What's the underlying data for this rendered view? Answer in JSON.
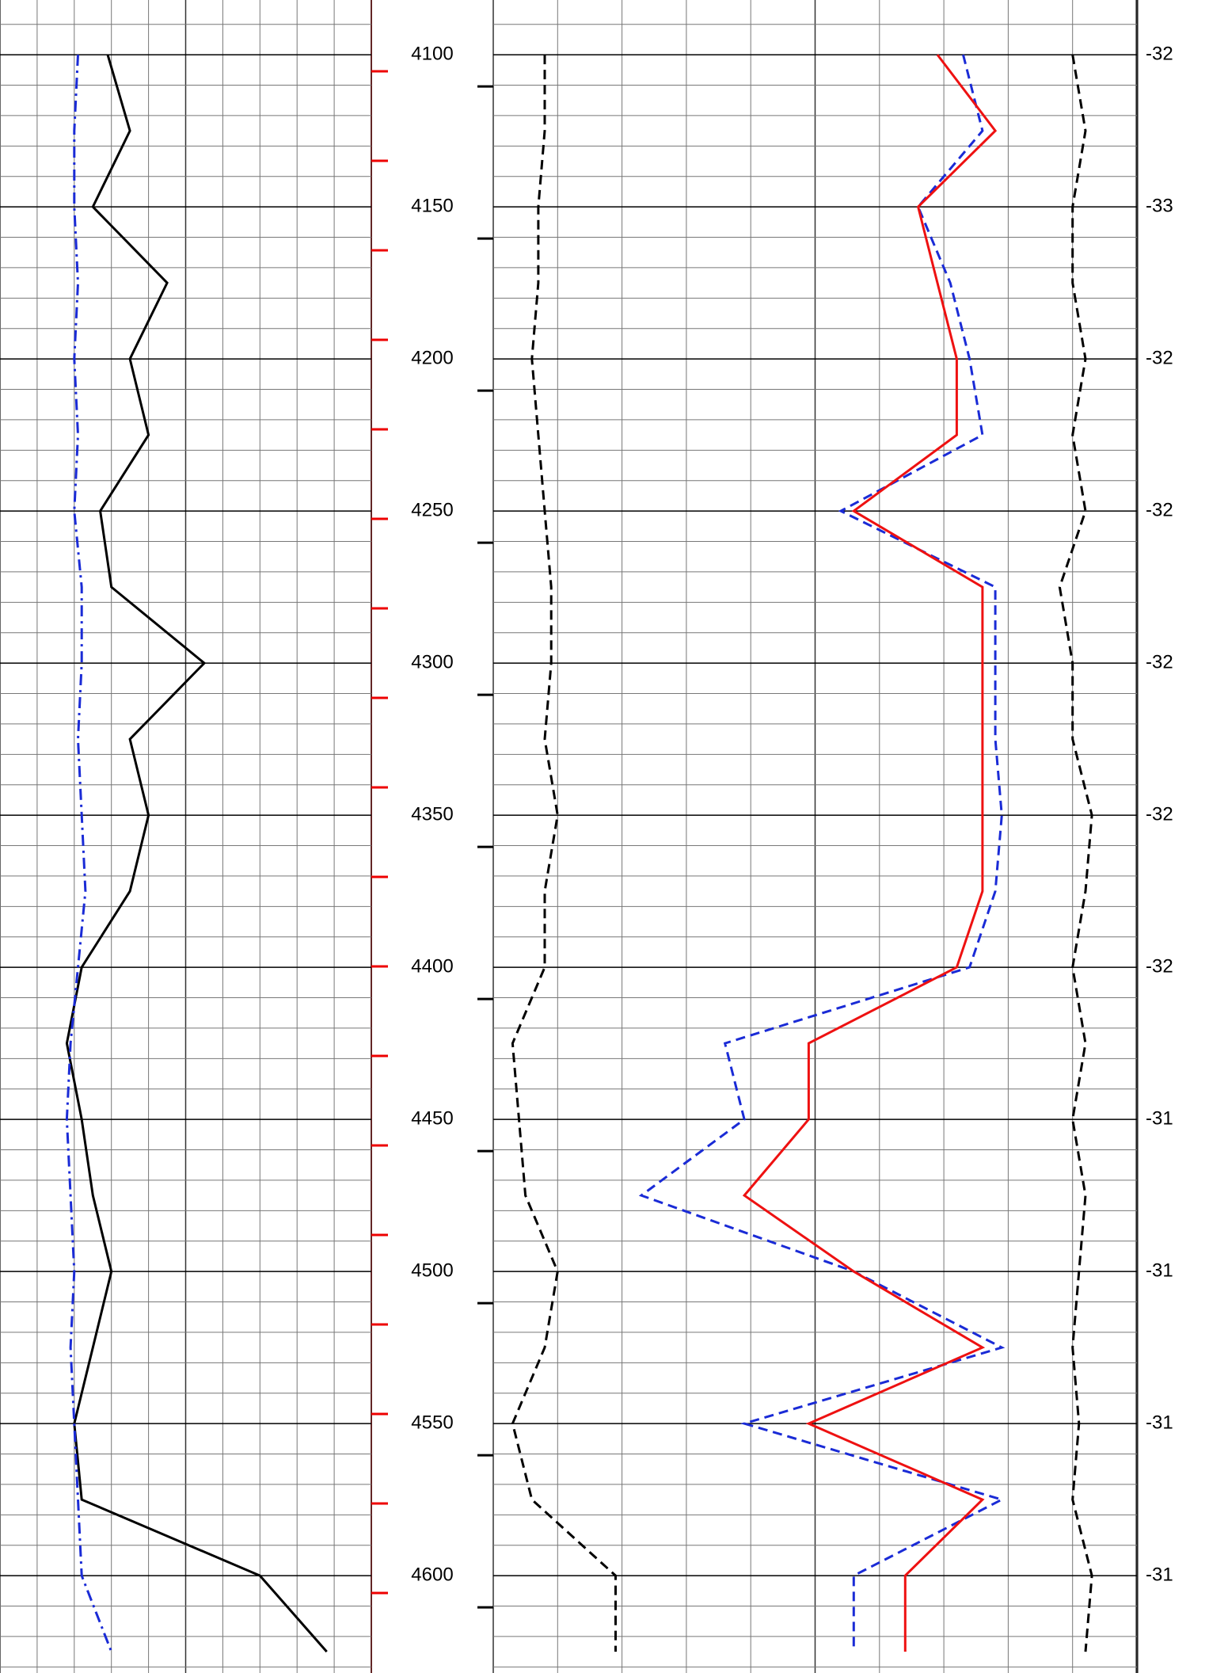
{
  "chart_data": {
    "type": "line",
    "ylim": [
      4082,
      4632
    ],
    "yticks": [
      4100,
      4150,
      4200,
      4250,
      4300,
      4350,
      4400,
      4450,
      4500,
      4550,
      4600
    ],
    "right_labels": [
      "-32",
      "-33",
      "-32",
      "-32",
      "-32",
      "-32",
      "-32",
      "-31",
      "-31",
      "-31",
      "-31"
    ],
    "xlim": [
      0,
      100
    ],
    "grid": true,
    "y": [
      4100,
      4125,
      4150,
      4175,
      4200,
      4225,
      4250,
      4275,
      4300,
      4325,
      4350,
      4375,
      4400,
      4425,
      4450,
      4475,
      4500,
      4525,
      4550,
      4575,
      4600,
      4625
    ],
    "series": [
      {
        "track": 0,
        "color": "#000000",
        "dash": "solid",
        "values": [
          29,
          35,
          25,
          45,
          35,
          40,
          27,
          30,
          55,
          35,
          40,
          35,
          22,
          18,
          22,
          25,
          30,
          25,
          20,
          22,
          70,
          88
        ]
      },
      {
        "track": 0,
        "color": "#1a2bd6",
        "dash": "dashdot",
        "values": [
          21,
          20,
          20,
          21,
          20,
          21,
          20,
          22,
          22,
          21,
          22,
          23,
          21,
          19,
          18,
          19,
          20,
          19,
          20,
          21,
          22,
          30
        ]
      },
      {
        "track": 1,
        "color": "#000000",
        "dash": "dashed",
        "values": [
          8,
          8,
          7,
          7,
          6,
          7,
          8,
          9,
          9,
          8,
          10,
          8,
          8,
          3,
          4,
          5,
          10,
          8,
          3,
          6,
          19,
          19
        ]
      },
      {
        "track": 1,
        "color": "#1a2bd6",
        "dash": "dashed",
        "values": [
          73,
          76,
          66,
          71,
          74,
          76,
          54,
          78,
          78,
          78,
          79,
          78,
          74,
          36,
          39,
          23,
          56,
          79,
          39,
          79,
          56,
          56
        ]
      },
      {
        "track": 1,
        "color": "#ee1111",
        "dash": "solid",
        "values": [
          69,
          78,
          66,
          69,
          72,
          72,
          56,
          76,
          76,
          76,
          76,
          76,
          72,
          49,
          49,
          39,
          56,
          76,
          49,
          76,
          64,
          64
        ]
      },
      {
        "track": 1,
        "color": "#000000",
        "dash": "dashed",
        "values": [
          90,
          92,
          90,
          90,
          92,
          90,
          92,
          88,
          90,
          90,
          93,
          92,
          90,
          92,
          90,
          92,
          91,
          90,
          91,
          90,
          93,
          92
        ]
      }
    ]
  }
}
